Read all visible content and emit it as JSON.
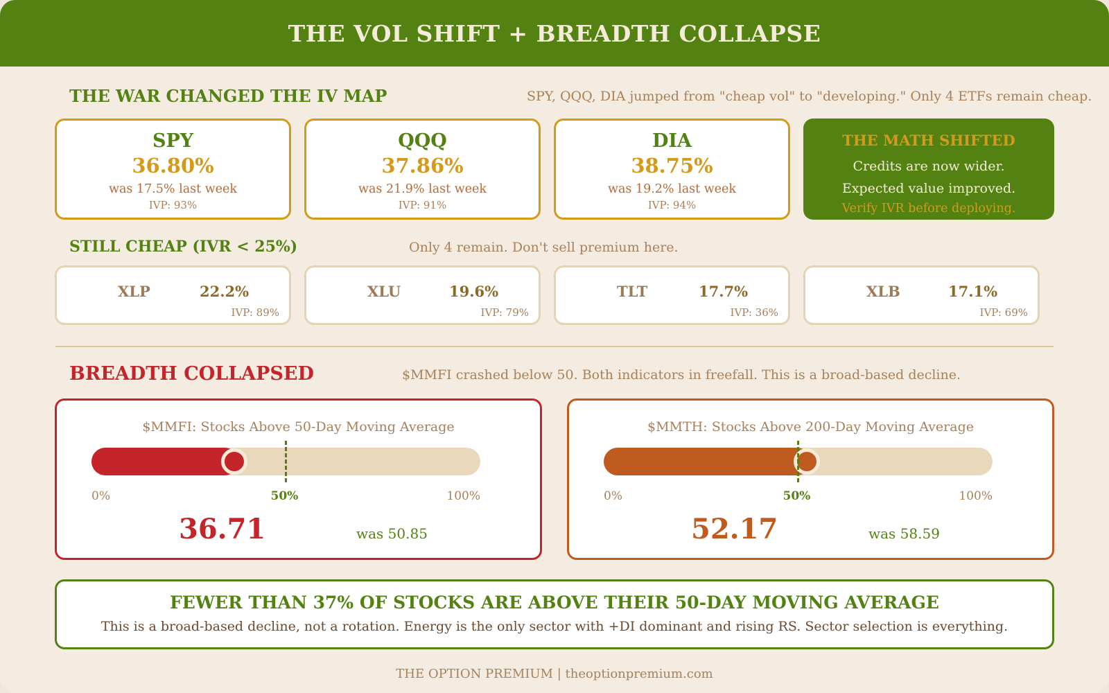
{
  "header": {
    "title": "THE VOL SHIFT + BREADTH COLLAPSE"
  },
  "iv_section": {
    "title": "THE WAR CHANGED THE IV MAP",
    "subtitle": "SPY, QQQ, DIA jumped from \"cheap vol\" to \"developing.\" Only 4 ETFs remain cheap.",
    "cards": [
      {
        "ticker": "SPY",
        "iv": "36.80%",
        "was": "was 17.5% last week",
        "ivp": "IVP: 93%"
      },
      {
        "ticker": "QQQ",
        "iv": "37.86%",
        "was": "was 21.9% last week",
        "ivp": "IVP: 91%"
      },
      {
        "ticker": "DIA",
        "iv": "38.75%",
        "was": "was 19.2% last week",
        "ivp": "IVP: 94%"
      }
    ],
    "math_card": {
      "title": "THE MATH SHIFTED",
      "line1": "Credits are now wider.",
      "line2": "Expected value improved.",
      "warning": "Verify IVR before deploying."
    }
  },
  "cheap_section": {
    "title": "STILL CHEAP (IVR < 25%)",
    "subtitle": "Only 4 remain. Don't sell premium here.",
    "cards": [
      {
        "ticker": "XLP",
        "value": "22.2%",
        "ivp": "IVP: 89%"
      },
      {
        "ticker": "XLU",
        "value": "19.6%",
        "ivp": "IVP: 79%"
      },
      {
        "ticker": "TLT",
        "value": "17.7%",
        "ivp": "IVP: 36%"
      },
      {
        "ticker": "XLB",
        "value": "17.1%",
        "ivp": "IVP: 69%"
      }
    ]
  },
  "breadth_section": {
    "title": "BREADTH COLLAPSED",
    "subtitle": "$MMFI crashed below 50. Both indicators in freefall. This is a broad-based decline.",
    "gauges": [
      {
        "label": "$MMFI: Stocks Above 50-Day Moving Average",
        "value": 36.71,
        "value_text": "36.71",
        "was": "was 50.85",
        "color": "#c4252a",
        "threshold": 50,
        "tick_min": "0%",
        "tick_mid": "50%",
        "tick_max": "100%"
      },
      {
        "label": "$MMTH: Stocks Above 200-Day Moving Average",
        "value": 52.17,
        "value_text": "52.17",
        "was": "was 58.59",
        "color": "#bf5a20",
        "threshold": 50,
        "tick_min": "0%",
        "tick_mid": "50%",
        "tick_max": "100%"
      }
    ]
  },
  "banner": {
    "title": "FEWER THAN 37% OF STOCKS ARE ABOVE THEIR 50-DAY MOVING AVERAGE",
    "text": "This is a broad-based decline, not a rotation. Energy is the only sector with +DI dominant and rising RS. Sector selection is everything."
  },
  "footer": {
    "text": "THE OPTION PREMIUM | theoptionpremium.com"
  },
  "colors": {
    "green": "#538212",
    "gold": "#d39a1c",
    "red": "#c4252a",
    "orange": "#bf5a20"
  }
}
